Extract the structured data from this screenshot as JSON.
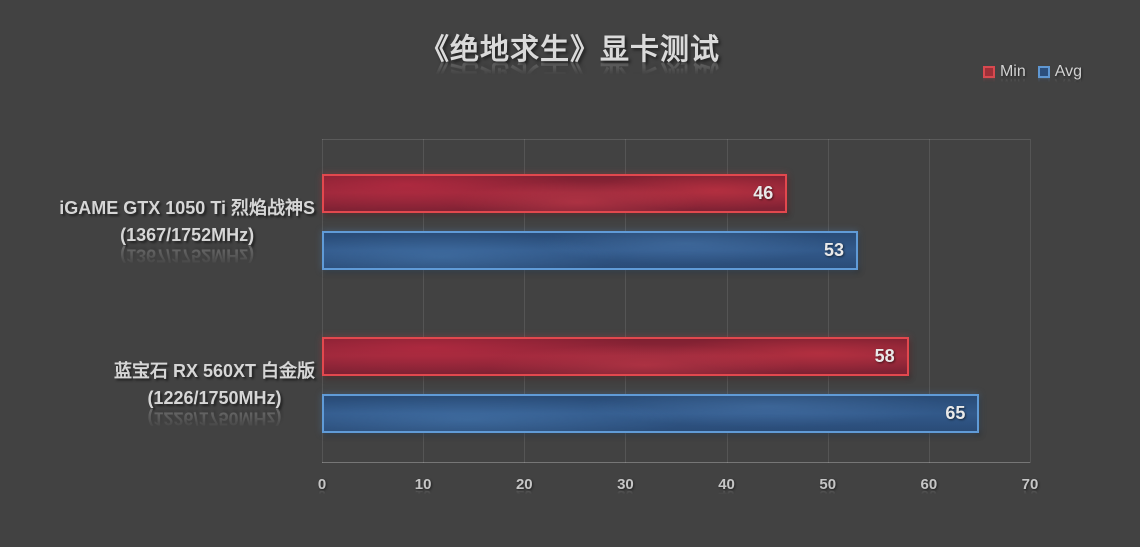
{
  "title": "《绝地求生》显卡测试",
  "legend": {
    "min_label": "Min",
    "avg_label": "Avg"
  },
  "colors": {
    "background": "#424242",
    "min_fill": "#8c2434",
    "min_border": "#e2484e",
    "avg_fill": "#2c4f7b",
    "avg_border": "#609bd7"
  },
  "chart_data": {
    "type": "bar",
    "orientation": "horizontal",
    "title": "《绝地求生》显卡测试",
    "categories": [
      {
        "line1": "iGAME GTX 1050 Ti 烈焰战神S",
        "line2": "(1367/1752MHz)"
      },
      {
        "line1": "蓝宝石 RX 560XT 白金版",
        "line2": "(1226/1750MHz)"
      }
    ],
    "series": [
      {
        "name": "Min",
        "color_key": "min",
        "values": [
          46,
          58
        ]
      },
      {
        "name": "Avg",
        "color_key": "avg",
        "values": [
          53,
          65
        ]
      }
    ],
    "xlim": [
      0,
      70
    ],
    "xticks": [
      0,
      10,
      20,
      30,
      40,
      50,
      60,
      70
    ],
    "grid": "vertical",
    "legend_position": "top-right"
  }
}
